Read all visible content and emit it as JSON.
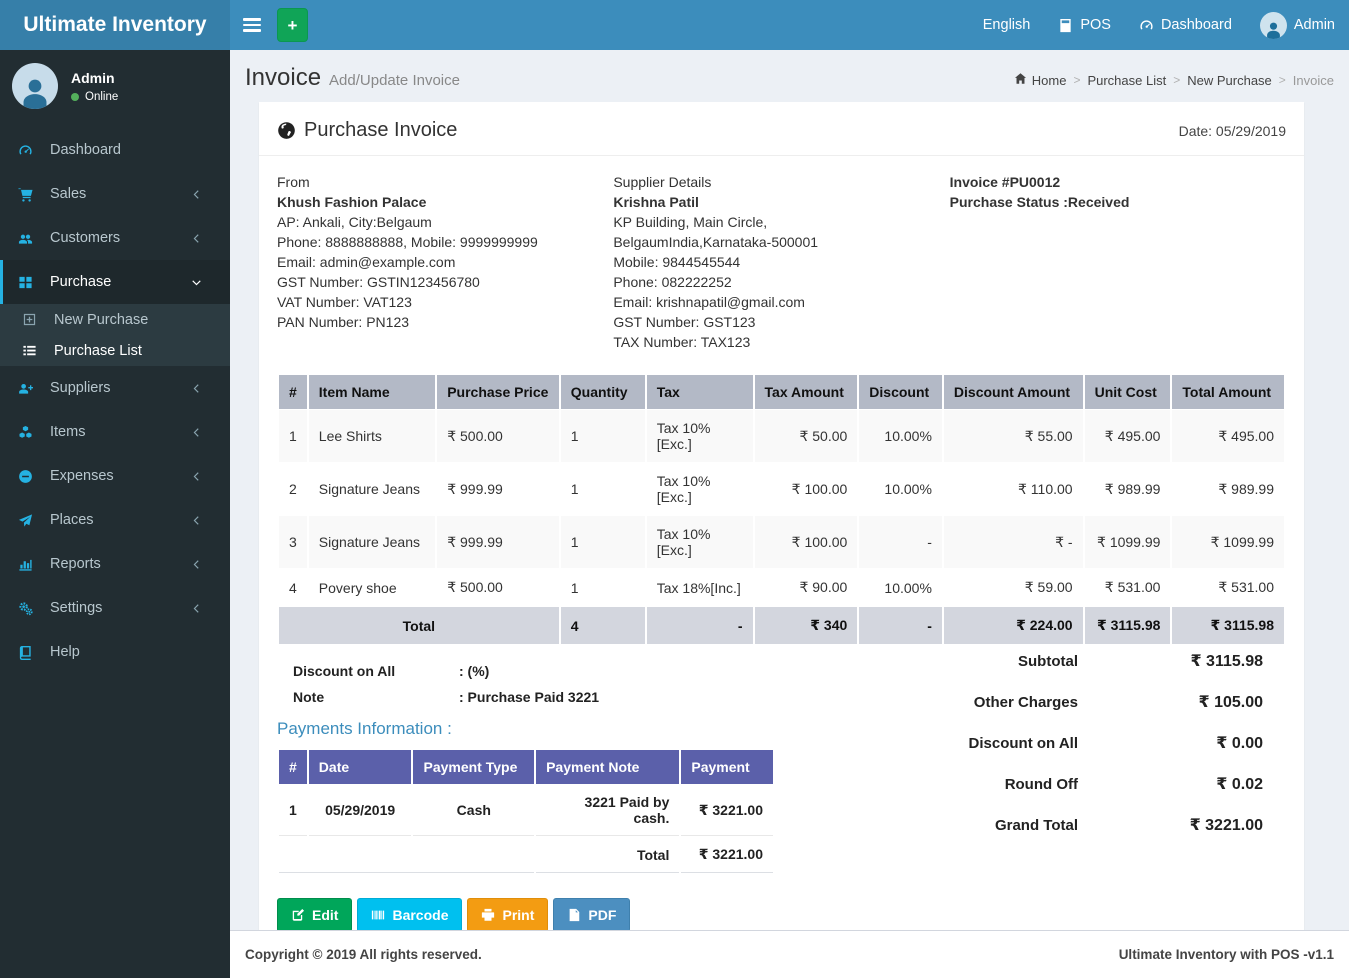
{
  "colors": {
    "navbar_bg": "#3c8dbc",
    "logo_bg": "#367fa9",
    "sidebar_bg": "#222d32",
    "submenu_bg": "#2c3b41",
    "sidebar_text": "#b8c7ce",
    "icon_accent": "#25b2e2",
    "table_header_bg": "#b3b9c6",
    "table_total_bg": "#d3d6de",
    "payments_header_bg": "#5b60aa",
    "link_blue": "#3c8dbc",
    "online_green": "#54b05c"
  },
  "topbar": {
    "brand": "Ultimate Inventory",
    "nav": [
      {
        "id": "language",
        "label": "English",
        "icon": null
      },
      {
        "id": "pos",
        "label": "POS",
        "icon": "calculator-icon"
      },
      {
        "id": "dashboard",
        "label": "Dashboard",
        "icon": "gauge-icon"
      },
      {
        "id": "admin",
        "label": "Admin",
        "icon": "user-avatar-icon"
      }
    ]
  },
  "sidebar": {
    "user": {
      "name": "Admin",
      "status": "Online"
    },
    "items": [
      {
        "id": "dashboard",
        "label": "Dashboard",
        "icon": "gauge-icon",
        "chevron": null
      },
      {
        "id": "sales",
        "label": "Sales",
        "icon": "cart-icon",
        "chevron": "left"
      },
      {
        "id": "customers",
        "label": "Customers",
        "icon": "users-icon",
        "chevron": "left"
      },
      {
        "id": "purchase",
        "label": "Purchase",
        "icon": "grid-icon",
        "chevron": "down",
        "active": true,
        "children": [
          {
            "id": "new-purchase",
            "label": "New Purchase",
            "icon": "plus-square-icon",
            "active": false
          },
          {
            "id": "purchase-list",
            "label": "Purchase List",
            "icon": "list-icon",
            "active": true
          }
        ]
      },
      {
        "id": "suppliers",
        "label": "Suppliers",
        "icon": "user-plus-icon",
        "chevron": "left"
      },
      {
        "id": "items",
        "label": "Items",
        "icon": "cubes-icon",
        "chevron": "left"
      },
      {
        "id": "expenses",
        "label": "Expenses",
        "icon": "minus-circle-icon",
        "chevron": "left"
      },
      {
        "id": "places",
        "label": "Places",
        "icon": "paper-plane-icon",
        "chevron": "left"
      },
      {
        "id": "reports",
        "label": "Reports",
        "icon": "bar-chart-icon",
        "chevron": "left"
      },
      {
        "id": "settings",
        "label": "Settings",
        "icon": "gears-icon",
        "chevron": "left"
      },
      {
        "id": "help",
        "label": "Help",
        "icon": "book-icon",
        "chevron": null
      }
    ]
  },
  "page": {
    "title": "Invoice",
    "subtitle": "Add/Update Invoice",
    "breadcrumb": [
      {
        "label": "Home",
        "icon": "home-icon"
      },
      {
        "label": "Purchase List"
      },
      {
        "label": "New Purchase"
      },
      {
        "label": "Invoice",
        "active": true
      }
    ]
  },
  "invoice": {
    "card_title": "Purchase Invoice",
    "date_label": "Date: 05/29/2019",
    "from": {
      "label": "From",
      "name": "Khush Fashion Palace",
      "lines": [
        "AP: Ankali, City:Belgaum",
        "Phone: 8888888888, Mobile: 9999999999",
        "Email: admin@example.com",
        "GST Number: GSTIN123456780",
        "VAT Number: VAT123",
        "PAN Number: PN123"
      ]
    },
    "supplier": {
      "label": "Supplier Details",
      "name": "Krishna Patil",
      "lines": [
        "KP Building, Main Circle, BelgaumIndia,Karnataka-500001",
        "Mobile: 9844545544",
        "Phone: 082222252",
        "Email: krishnapatil@gmail.com",
        "GST Number: GST123",
        "TAX Number: TAX123"
      ]
    },
    "meta": {
      "number": "Invoice #PU0012",
      "status": "Purchase Status :Received"
    },
    "items_table": {
      "headers": [
        "#",
        "Item Name",
        "Purchase Price",
        "Quantity",
        "Tax",
        "Tax Amount",
        "Discount",
        "Discount Amount",
        "Unit Cost",
        "Total Amount"
      ],
      "rows": [
        [
          "1",
          "Lee Shirts",
          "₹ 500.00",
          "1",
          "Tax 10%[Exc.]",
          "₹ 50.00",
          "10.00%",
          "₹ 55.00",
          "₹ 495.00",
          "₹ 495.00"
        ],
        [
          "2",
          "Signature Jeans",
          "₹ 999.99",
          "1",
          "Tax 10%[Exc.]",
          "₹ 100.00",
          "10.00%",
          "₹ 110.00",
          "₹ 989.99",
          "₹ 989.99"
        ],
        [
          "3",
          "Signature Jeans",
          "₹ 999.99",
          "1",
          "Tax 10%[Exc.]",
          "₹ 100.00",
          "-",
          "₹ -",
          "₹ 1099.99",
          "₹ 1099.99"
        ],
        [
          "4",
          "Povery shoe",
          "₹ 500.00",
          "1",
          "Tax 18%[Inc.]",
          "₹ 90.00",
          "10.00%",
          "₹ 59.00",
          "₹ 531.00",
          "₹ 531.00"
        ]
      ],
      "total_row": {
        "label": "Total",
        "quantity": "4",
        "tax": "-",
        "tax_amount": "₹ 340",
        "discount": "-",
        "discount_amount": "₹ 224.00",
        "unit_cost": "₹ 3115.98",
        "total_amount": "₹ 3115.98"
      }
    },
    "discount_on_all_label": "Discount on All",
    "discount_on_all_value": ": (%)",
    "note_label": "Note",
    "note_value": ": Purchase Paid 3221",
    "payments_title": "Payments Information :",
    "payments_table": {
      "headers": [
        "#",
        "Date",
        "Payment Type",
        "Payment Note",
        "Payment"
      ],
      "rows": [
        [
          "1",
          "05/29/2019",
          "Cash",
          "3221 Paid by cash.",
          "₹ 3221.00"
        ]
      ],
      "total_label": "Total",
      "total_value": "₹ 3221.00"
    },
    "summary": [
      {
        "label": "Subtotal",
        "value": "₹ 3115.98"
      },
      {
        "label": "Other Charges",
        "value": "₹ 105.00"
      },
      {
        "label": "Discount on All",
        "value": "₹ 0.00"
      },
      {
        "label": "Round Off",
        "value": "₹ 0.02"
      },
      {
        "label": "Grand Total",
        "value": "₹ 3221.00"
      }
    ],
    "actions": [
      {
        "id": "edit",
        "label": "Edit",
        "icon": "edit-icon",
        "bg": "#00a65a",
        "border": "#008d4c"
      },
      {
        "id": "barcode",
        "label": "Barcode",
        "icon": "barcode-icon",
        "bg": "#00c0ef",
        "border": "#00acd6"
      },
      {
        "id": "print",
        "label": "Print",
        "icon": "printer-icon",
        "bg": "#f39c12",
        "border": "#e08e0b"
      },
      {
        "id": "pdf",
        "label": "PDF",
        "icon": "file-pdf-icon",
        "bg": "#4c8fc0",
        "border": "#3f80ad"
      }
    ]
  },
  "footer": {
    "left": "Copyright © 2019 All rights reserved.",
    "right": "Ultimate Inventory with POS -v1.1"
  }
}
